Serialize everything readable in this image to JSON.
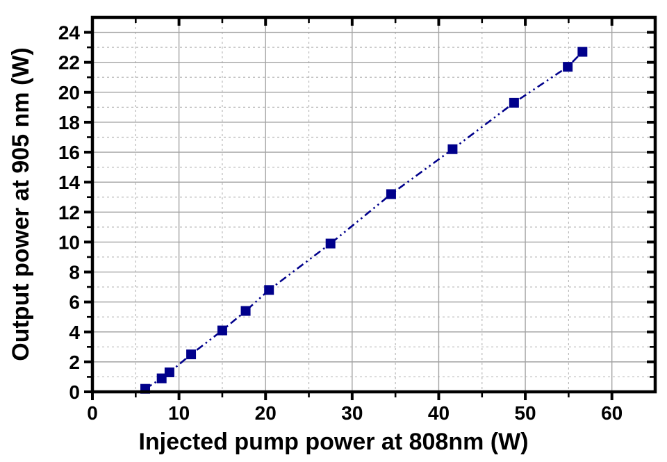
{
  "figure": {
    "background": "#ffffff"
  },
  "chart_data": {
    "type": "line",
    "title": "",
    "xlabel": "Injected pump power at 808nm (W)",
    "ylabel": "Output power at 905 nm (W)",
    "xlim": [
      0,
      65
    ],
    "ylim": [
      0,
      25
    ],
    "x_major_ticks": [
      0,
      10,
      20,
      30,
      40,
      50,
      60
    ],
    "x_minor_ticks": [
      5,
      15,
      25,
      35,
      45,
      55
    ],
    "y_major_ticks": [
      0,
      2,
      4,
      6,
      8,
      10,
      12,
      14,
      16,
      18,
      20,
      22,
      24
    ],
    "y_minor_ticks": [
      1,
      3,
      5,
      7,
      9,
      11,
      13,
      15,
      17,
      19,
      21,
      23
    ],
    "grid": {
      "show": true,
      "major_color": "#a3a3a3",
      "minor_color": "#b9b9b9",
      "minor_style": "dotted"
    },
    "legend": {
      "show": false
    },
    "frame_color": "#000000",
    "series": [
      {
        "name": "Output power at 905 nm",
        "marker": "square",
        "marker_size": 14,
        "color": "#00008B",
        "line_style": "dash-dot-dot",
        "points": [
          [
            6.1,
            0.2
          ],
          [
            8.0,
            0.9
          ],
          [
            8.9,
            1.3
          ],
          [
            11.4,
            2.5
          ],
          [
            15.0,
            4.1
          ],
          [
            17.7,
            5.4
          ],
          [
            20.4,
            6.8
          ],
          [
            27.5,
            9.9
          ],
          [
            34.5,
            13.2
          ],
          [
            41.6,
            16.2
          ],
          [
            48.7,
            19.3
          ],
          [
            54.9,
            21.7
          ],
          [
            56.6,
            22.7
          ]
        ]
      }
    ]
  }
}
